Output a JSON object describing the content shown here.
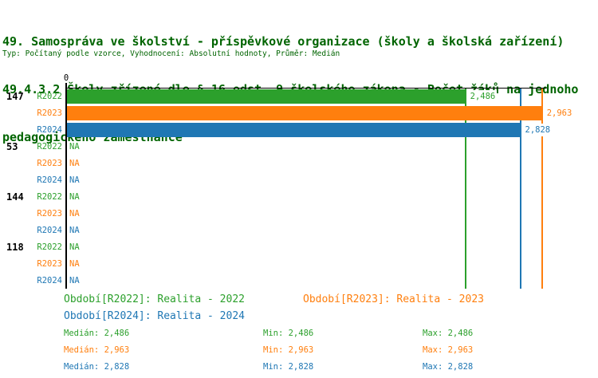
{
  "colors": {
    "title_text": "#006400",
    "axis": "#000000",
    "background": "#ffffff",
    "series": {
      "R2022": "#2ca02c",
      "R2023": "#ff7f0e",
      "R2024": "#1f77b4"
    }
  },
  "title": {
    "line1": "49. Samospráva ve školství - příspěvkové organizace (školy a školská zařízení)",
    "line2": "49.4.3.2 Školy zřízené dle § 16 odst. 9 školského zákona - Počet žáků na jednoho",
    "line3": "pedagogického zaměstnance",
    "subtitle": "Typ: Počítaný podle vzorce, Vyhodnocení: Absolutní hodnoty, Průměr: Medián"
  },
  "chart_data": {
    "type": "bar",
    "orientation": "horizontal",
    "title": "49.4.3.2 Školy zřízené dle § 16 odst. 9 školského zákona - Počet žáků na jednoho pedagogického zaměstnance",
    "x_axis": {
      "zero_label": "0",
      "min": 0,
      "max": 2.99,
      "grid": false
    },
    "categories": [
      "147",
      "53",
      "144",
      "118"
    ],
    "series_names": [
      "R2022",
      "R2023",
      "R2024"
    ],
    "groups": [
      {
        "label": "147",
        "bars": [
          {
            "series": "R2022",
            "value": 2.486,
            "label": "2,486"
          },
          {
            "series": "R2023",
            "value": 2.963,
            "label": "2,963"
          },
          {
            "series": "R2024",
            "value": 2.828,
            "label": "2,828"
          }
        ]
      },
      {
        "label": "53",
        "bars": [
          {
            "series": "R2022",
            "value": null,
            "label": "NA"
          },
          {
            "series": "R2023",
            "value": null,
            "label": "NA"
          },
          {
            "series": "R2024",
            "value": null,
            "label": "NA"
          }
        ]
      },
      {
        "label": "144",
        "bars": [
          {
            "series": "R2022",
            "value": null,
            "label": "NA"
          },
          {
            "series": "R2023",
            "value": null,
            "label": "NA"
          },
          {
            "series": "R2024",
            "value": null,
            "label": "NA"
          }
        ]
      },
      {
        "label": "118",
        "bars": [
          {
            "series": "R2022",
            "value": null,
            "label": "NA"
          },
          {
            "series": "R2023",
            "value": null,
            "label": "NA"
          },
          {
            "series": "R2024",
            "value": null,
            "label": "NA"
          }
        ]
      }
    ],
    "reference_lines": [
      {
        "series": "R2022",
        "value": 2.486
      },
      {
        "series": "R2023",
        "value": 2.963
      },
      {
        "series": "R2024",
        "value": 2.828
      }
    ]
  },
  "legend": {
    "periods": [
      {
        "series": "R2022",
        "label": "Období[R2022]: Realita - 2022"
      },
      {
        "series": "R2023",
        "label": "Období[R2023]: Realita - 2023"
      },
      {
        "series": "R2024",
        "label": "Období[R2024]: Realita - 2024"
      }
    ],
    "stats": [
      {
        "series": "R2022",
        "median": "Medián: 2,486",
        "min": "Min: 2,486",
        "max": "Max: 2,486"
      },
      {
        "series": "R2023",
        "median": "Medián: 2,963",
        "min": "Min: 2,963",
        "max": "Max: 2,963"
      },
      {
        "series": "R2024",
        "median": "Medián: 2,828",
        "min": "Min: 2,828",
        "max": "Max: 2,828"
      }
    ]
  }
}
